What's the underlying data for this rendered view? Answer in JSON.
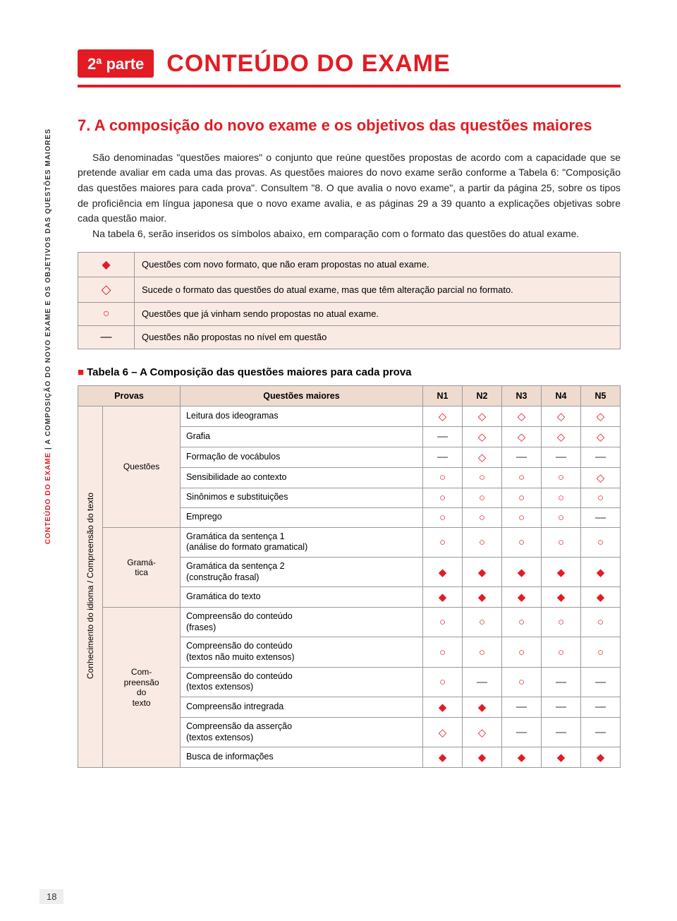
{
  "colors": {
    "brand_red": "#e31b23",
    "table_bg": "#f9ebe4",
    "header_bg": "#eedbce",
    "border": "#999999",
    "text": "#231f20"
  },
  "part_badge": "2ª parte",
  "page_title": "CONTEÚDO DO EXAME",
  "sidebar": {
    "red": "CONTEÚDO DO EXAME",
    "black": " | A COMPOSIÇÃO DO NOVO EXAME E OS OBJETIVOS DAS QUESTÕES MAIORES"
  },
  "section_heading": "7. A composição do novo exame e os objetivos das questões maiores",
  "para1": "São denominadas \"questões maiores\" o conjunto que reúne questões propostas de acordo com a capacidade que se pretende avaliar em cada uma das provas. As questões maiores do novo exame serão conforme a Tabela 6: \"Composição das questões maiores para cada prova\". Consultem \"8. O que avalia o novo exame\", a partir da página 25, sobre os tipos de proficiência em língua japonesa que o novo exame avalia, e as páginas 29 a 39 quanto a explicações objetivas sobre cada questão maior.",
  "para2": "Na tabela 6, serão inseridos os símbolos abaixo, em comparação com o formato das questões do atual exame.",
  "symbols": [
    {
      "g": "◆",
      "cls": "sym-filled",
      "text": "Questões com novo formato, que não eram propostas no atual exame."
    },
    {
      "g": "◇",
      "cls": "sym-diamond",
      "text": "Sucede o formato das questões do atual exame, mas que têm alteração parcial no formato."
    },
    {
      "g": "○",
      "cls": "sym-circle",
      "text": "Questões que já vinham sendo propostas no atual exame."
    },
    {
      "g": "—",
      "cls": "",
      "text": "Questões não propostas no nível em questão"
    }
  ],
  "table6_label": "Tabela 6 – A Composição das questões maiores para cada prova",
  "table6_header": {
    "provas": "Provas",
    "questoes": "Questões maiores",
    "levels": [
      "N1",
      "N2",
      "N3",
      "N4",
      "N5"
    ]
  },
  "prova_col": "Conhecimento do idioma / Compreensão do texto",
  "subcats": {
    "questoes": "Questões",
    "gramatica": "Gramá-\ntica",
    "compreensao": "Com-\npreensão\ndo\ntexto"
  },
  "rows": [
    {
      "cat": "questoes",
      "label": "Leitura dos ideogramas",
      "marks": [
        "◇",
        "◇",
        "◇",
        "◇",
        "◇"
      ]
    },
    {
      "cat": "questoes",
      "label": "Grafia",
      "marks": [
        "—",
        "◇",
        "◇",
        "◇",
        "◇"
      ]
    },
    {
      "cat": "questoes",
      "label": "Formação de vocábulos",
      "marks": [
        "—",
        "◇",
        "—",
        "—",
        "—"
      ]
    },
    {
      "cat": "questoes",
      "label": "Sensibilidade ao contexto",
      "marks": [
        "○",
        "○",
        "○",
        "○",
        "◇"
      ]
    },
    {
      "cat": "questoes",
      "label": "Sinônimos e substituições",
      "marks": [
        "○",
        "○",
        "○",
        "○",
        "○"
      ]
    },
    {
      "cat": "questoes",
      "label": "Emprego",
      "marks": [
        "○",
        "○",
        "○",
        "○",
        "—"
      ]
    },
    {
      "cat": "gramatica",
      "label": "Gramática da sentença 1\n(análise do formato gramatical)",
      "marks": [
        "○",
        "○",
        "○",
        "○",
        "○"
      ]
    },
    {
      "cat": "gramatica",
      "label": "Gramática da sentença 2\n(construção frasal)",
      "marks": [
        "◆",
        "◆",
        "◆",
        "◆",
        "◆"
      ]
    },
    {
      "cat": "gramatica",
      "label": "Gramática do texto",
      "marks": [
        "◆",
        "◆",
        "◆",
        "◆",
        "◆"
      ]
    },
    {
      "cat": "compreensao",
      "label": "Compreensão do conteúdo\n(frases)",
      "marks": [
        "○",
        "○",
        "○",
        "○",
        "○"
      ]
    },
    {
      "cat": "compreensao",
      "label": "Compreensão do conteúdo\n(textos não muito extensos)",
      "marks": [
        "○",
        "○",
        "○",
        "○",
        "○"
      ]
    },
    {
      "cat": "compreensao",
      "label": "Compreensão do conteúdo\n(textos extensos)",
      "marks": [
        "○",
        "—",
        "○",
        "—",
        "—"
      ]
    },
    {
      "cat": "compreensao",
      "label": "Compreensão intregrada",
      "marks": [
        "◆",
        "◆",
        "—",
        "—",
        "—"
      ]
    },
    {
      "cat": "compreensao",
      "label": "Compreensão da asserção\n(textos extensos)",
      "marks": [
        "◇",
        "◇",
        "—",
        "—",
        "—"
      ]
    },
    {
      "cat": "compreensao",
      "label": "Busca de informações",
      "marks": [
        "◆",
        "◆",
        "◆",
        "◆",
        "◆"
      ]
    }
  ],
  "page_number": "18"
}
